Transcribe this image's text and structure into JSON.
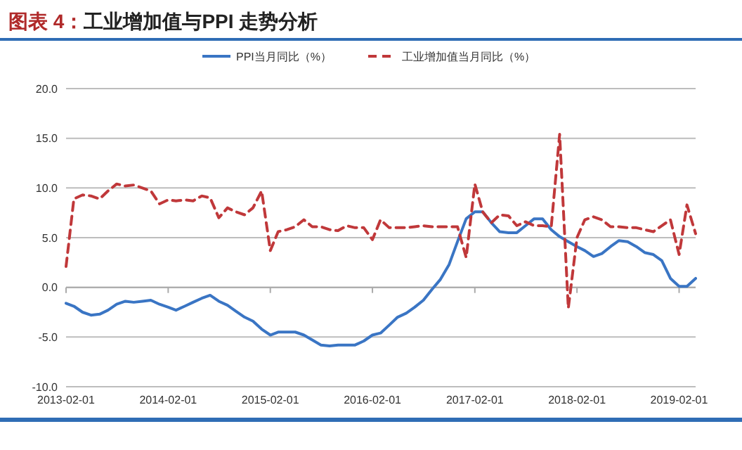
{
  "chart_data": {
    "type": "line",
    "title": "图表 4：工业增加值与PPI 走势分析",
    "x": [
      "2013-02",
      "2013-03",
      "2013-04",
      "2013-05",
      "2013-06",
      "2013-07",
      "2013-08",
      "2013-09",
      "2013-10",
      "2013-11",
      "2013-12",
      "2014-01",
      "2014-02",
      "2014-03",
      "2014-04",
      "2014-05",
      "2014-06",
      "2014-07",
      "2014-08",
      "2014-09",
      "2014-10",
      "2014-11",
      "2014-12",
      "2015-01",
      "2015-02",
      "2015-03",
      "2015-04",
      "2015-05",
      "2015-06",
      "2015-07",
      "2015-08",
      "2015-09",
      "2015-10",
      "2015-11",
      "2015-12",
      "2016-01",
      "2016-02",
      "2016-03",
      "2016-04",
      "2016-05",
      "2016-06",
      "2016-07",
      "2016-08",
      "2016-09",
      "2016-10",
      "2016-11",
      "2016-12",
      "2017-01",
      "2017-02",
      "2017-03",
      "2017-04",
      "2017-05",
      "2017-06",
      "2017-07",
      "2017-08",
      "2017-09",
      "2017-10",
      "2017-11",
      "2017-12",
      "2018-01",
      "2018-02",
      "2018-03",
      "2018-04",
      "2018-05",
      "2018-06",
      "2018-07",
      "2018-08",
      "2018-09",
      "2018-10",
      "2018-11",
      "2018-12",
      "2019-01",
      "2019-02",
      "2019-03",
      "2019-04"
    ],
    "series": [
      {
        "name": "PPI当月同比（%）",
        "color": "#3a75c4",
        "line_style": "solid",
        "values": [
          -1.6,
          -1.9,
          -2.5,
          -2.8,
          -2.7,
          -2.3,
          -1.7,
          -1.4,
          -1.5,
          -1.4,
          -1.3,
          -1.7,
          -2.0,
          -2.3,
          -1.9,
          -1.5,
          -1.1,
          -0.8,
          -1.4,
          -1.8,
          -2.4,
          -3.0,
          -3.4,
          -4.2,
          -4.8,
          -4.5,
          -4.5,
          -4.5,
          -4.8,
          -5.3,
          -5.8,
          -5.9,
          -5.8,
          -5.8,
          -5.8,
          -5.4,
          -4.8,
          -4.6,
          -3.8,
          -3.0,
          -2.6,
          -2.0,
          -1.3,
          -0.2,
          0.8,
          2.3,
          4.6,
          6.9,
          7.6,
          7.6,
          6.5,
          5.6,
          5.5,
          5.5,
          6.2,
          6.9,
          6.9,
          5.8,
          5.1,
          4.6,
          4.1,
          3.7,
          3.1,
          3.4,
          4.1,
          4.7,
          4.6,
          4.1,
          3.5,
          3.3,
          2.7,
          0.9,
          0.1,
          0.1,
          0.9
        ]
      },
      {
        "name": "工业增加值当月同比（%）",
        "color": "#c0383a",
        "line_style": "dashed",
        "values": [
          2.1,
          8.9,
          9.3,
          9.2,
          8.9,
          9.7,
          10.4,
          10.2,
          10.3,
          10.0,
          9.7,
          8.4,
          8.8,
          8.7,
          8.8,
          8.7,
          9.2,
          9.0,
          7.0,
          8.0,
          7.6,
          7.3,
          8.0,
          9.7,
          3.7,
          5.6,
          5.8,
          6.1,
          6.8,
          6.1,
          6.1,
          5.8,
          5.7,
          6.2,
          6.0,
          6.0,
          4.8,
          6.8,
          6.0,
          6.0,
          6.0,
          6.1,
          6.2,
          6.1,
          6.1,
          6.1,
          6.1,
          3.0,
          10.4,
          7.6,
          6.5,
          7.3,
          7.2,
          6.2,
          6.6,
          6.2,
          6.2,
          6.1,
          15.4,
          -2.1,
          5.0,
          6.8,
          7.1,
          6.8,
          6.1,
          6.1,
          6.0,
          6.0,
          5.8,
          5.6,
          6.2,
          6.8,
          3.3,
          8.3,
          5.4
        ]
      }
    ],
    "xlim": [
      "2013-02",
      "2019-04"
    ],
    "xticks": [
      {
        "value": "2013-02",
        "label": "2013-02-01"
      },
      {
        "value": "2014-02",
        "label": "2014-02-01"
      },
      {
        "value": "2015-02",
        "label": "2015-02-01"
      },
      {
        "value": "2016-02",
        "label": "2016-02-01"
      },
      {
        "value": "2017-02",
        "label": "2017-02-01"
      },
      {
        "value": "2018-02",
        "label": "2018-02-01"
      },
      {
        "value": "2019-02",
        "label": "2019-02-01"
      }
    ],
    "ylim": [
      -10,
      20
    ],
    "yticks": [
      {
        "value": -10,
        "label": "-10.0"
      },
      {
        "value": -5,
        "label": "-5.0"
      },
      {
        "value": 0,
        "label": "0.0"
      },
      {
        "value": 5,
        "label": "5.0"
      },
      {
        "value": 10,
        "label": "10.0"
      },
      {
        "value": 15,
        "label": "15.0"
      },
      {
        "value": 20,
        "label": "20.0"
      }
    ],
    "grid": "y",
    "legend": "top",
    "marker": "none"
  }
}
